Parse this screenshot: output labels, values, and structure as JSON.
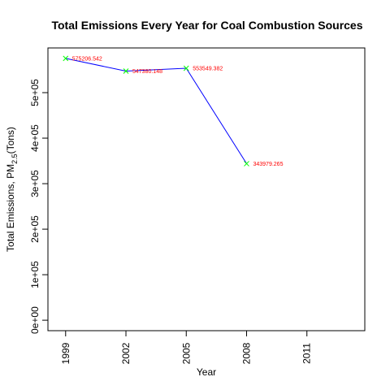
{
  "chart_data": {
    "type": "line",
    "title": "Total Emissions Every Year for Coal Combustion Sources",
    "xlabel": "Year",
    "ylabel_main": "Total Emissions, PM",
    "ylabel_sub": "2.5",
    "ylabel_unit": "(Tons)",
    "x": [
      1999,
      2002,
      2005,
      2008
    ],
    "y": [
      575206.542,
      547380.148,
      553549.382,
      343979.265
    ],
    "data_labels": [
      "575206.542",
      "547380.148",
      "553549.382",
      "343979.265"
    ],
    "x_ticks": [
      1999,
      2002,
      2005,
      2008,
      2011
    ],
    "x_tick_labels": [
      "1999",
      "2002",
      "2005",
      "2008",
      "2011"
    ],
    "y_ticks": [
      0,
      100000,
      200000,
      300000,
      400000,
      500000
    ],
    "y_tick_labels": [
      "0e+00",
      "1e+05",
      "2e+05",
      "3e+05",
      "4e+05",
      "5e+05"
    ],
    "xlim": [
      1998.12,
      2013.88
    ],
    "ylim": [
      -23008.26,
      598214.8
    ],
    "grid": false,
    "line_color": "#0000ff",
    "marker_color": "#00ff00",
    "label_color": "#ff0000",
    "marker": "x"
  }
}
